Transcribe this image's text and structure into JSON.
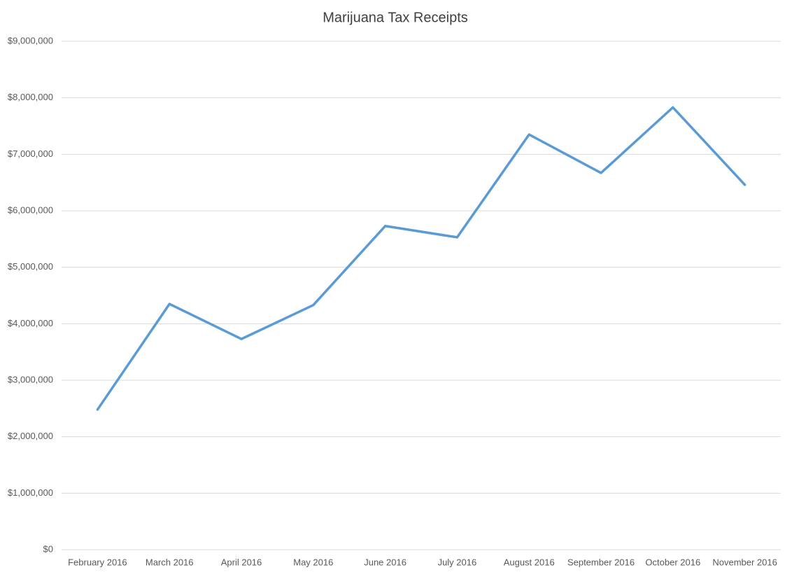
{
  "chart_data": {
    "type": "line",
    "title": "Marijuana Tax Receipts",
    "categories": [
      "February 2016",
      "March 2016",
      "April 2016",
      "May 2016",
      "June 2016",
      "July 2016",
      "August 2016",
      "September 2016",
      "October 2016",
      "November 2016"
    ],
    "series": [
      {
        "name": "Marijuana Tax Receipts",
        "color": "#5b9bd5",
        "values": [
          2480000,
          4350000,
          3730000,
          4330000,
          5730000,
          5530000,
          7350000,
          6670000,
          7830000,
          6460000
        ]
      }
    ],
    "ylim": [
      0,
      9000000
    ],
    "yticks": [
      {
        "value": 0,
        "label": "$0"
      },
      {
        "value": 1000000,
        "label": "$1,000,000"
      },
      {
        "value": 2000000,
        "label": "$2,000,000"
      },
      {
        "value": 3000000,
        "label": "$3,000,000"
      },
      {
        "value": 4000000,
        "label": "$4,000,000"
      },
      {
        "value": 5000000,
        "label": "$5,000,000"
      },
      {
        "value": 6000000,
        "label": "$6,000,000"
      },
      {
        "value": 7000000,
        "label": "$7,000,000"
      },
      {
        "value": 8000000,
        "label": "$8,000,000"
      },
      {
        "value": 9000000,
        "label": "$9,000,000"
      }
    ],
    "grid": true
  }
}
